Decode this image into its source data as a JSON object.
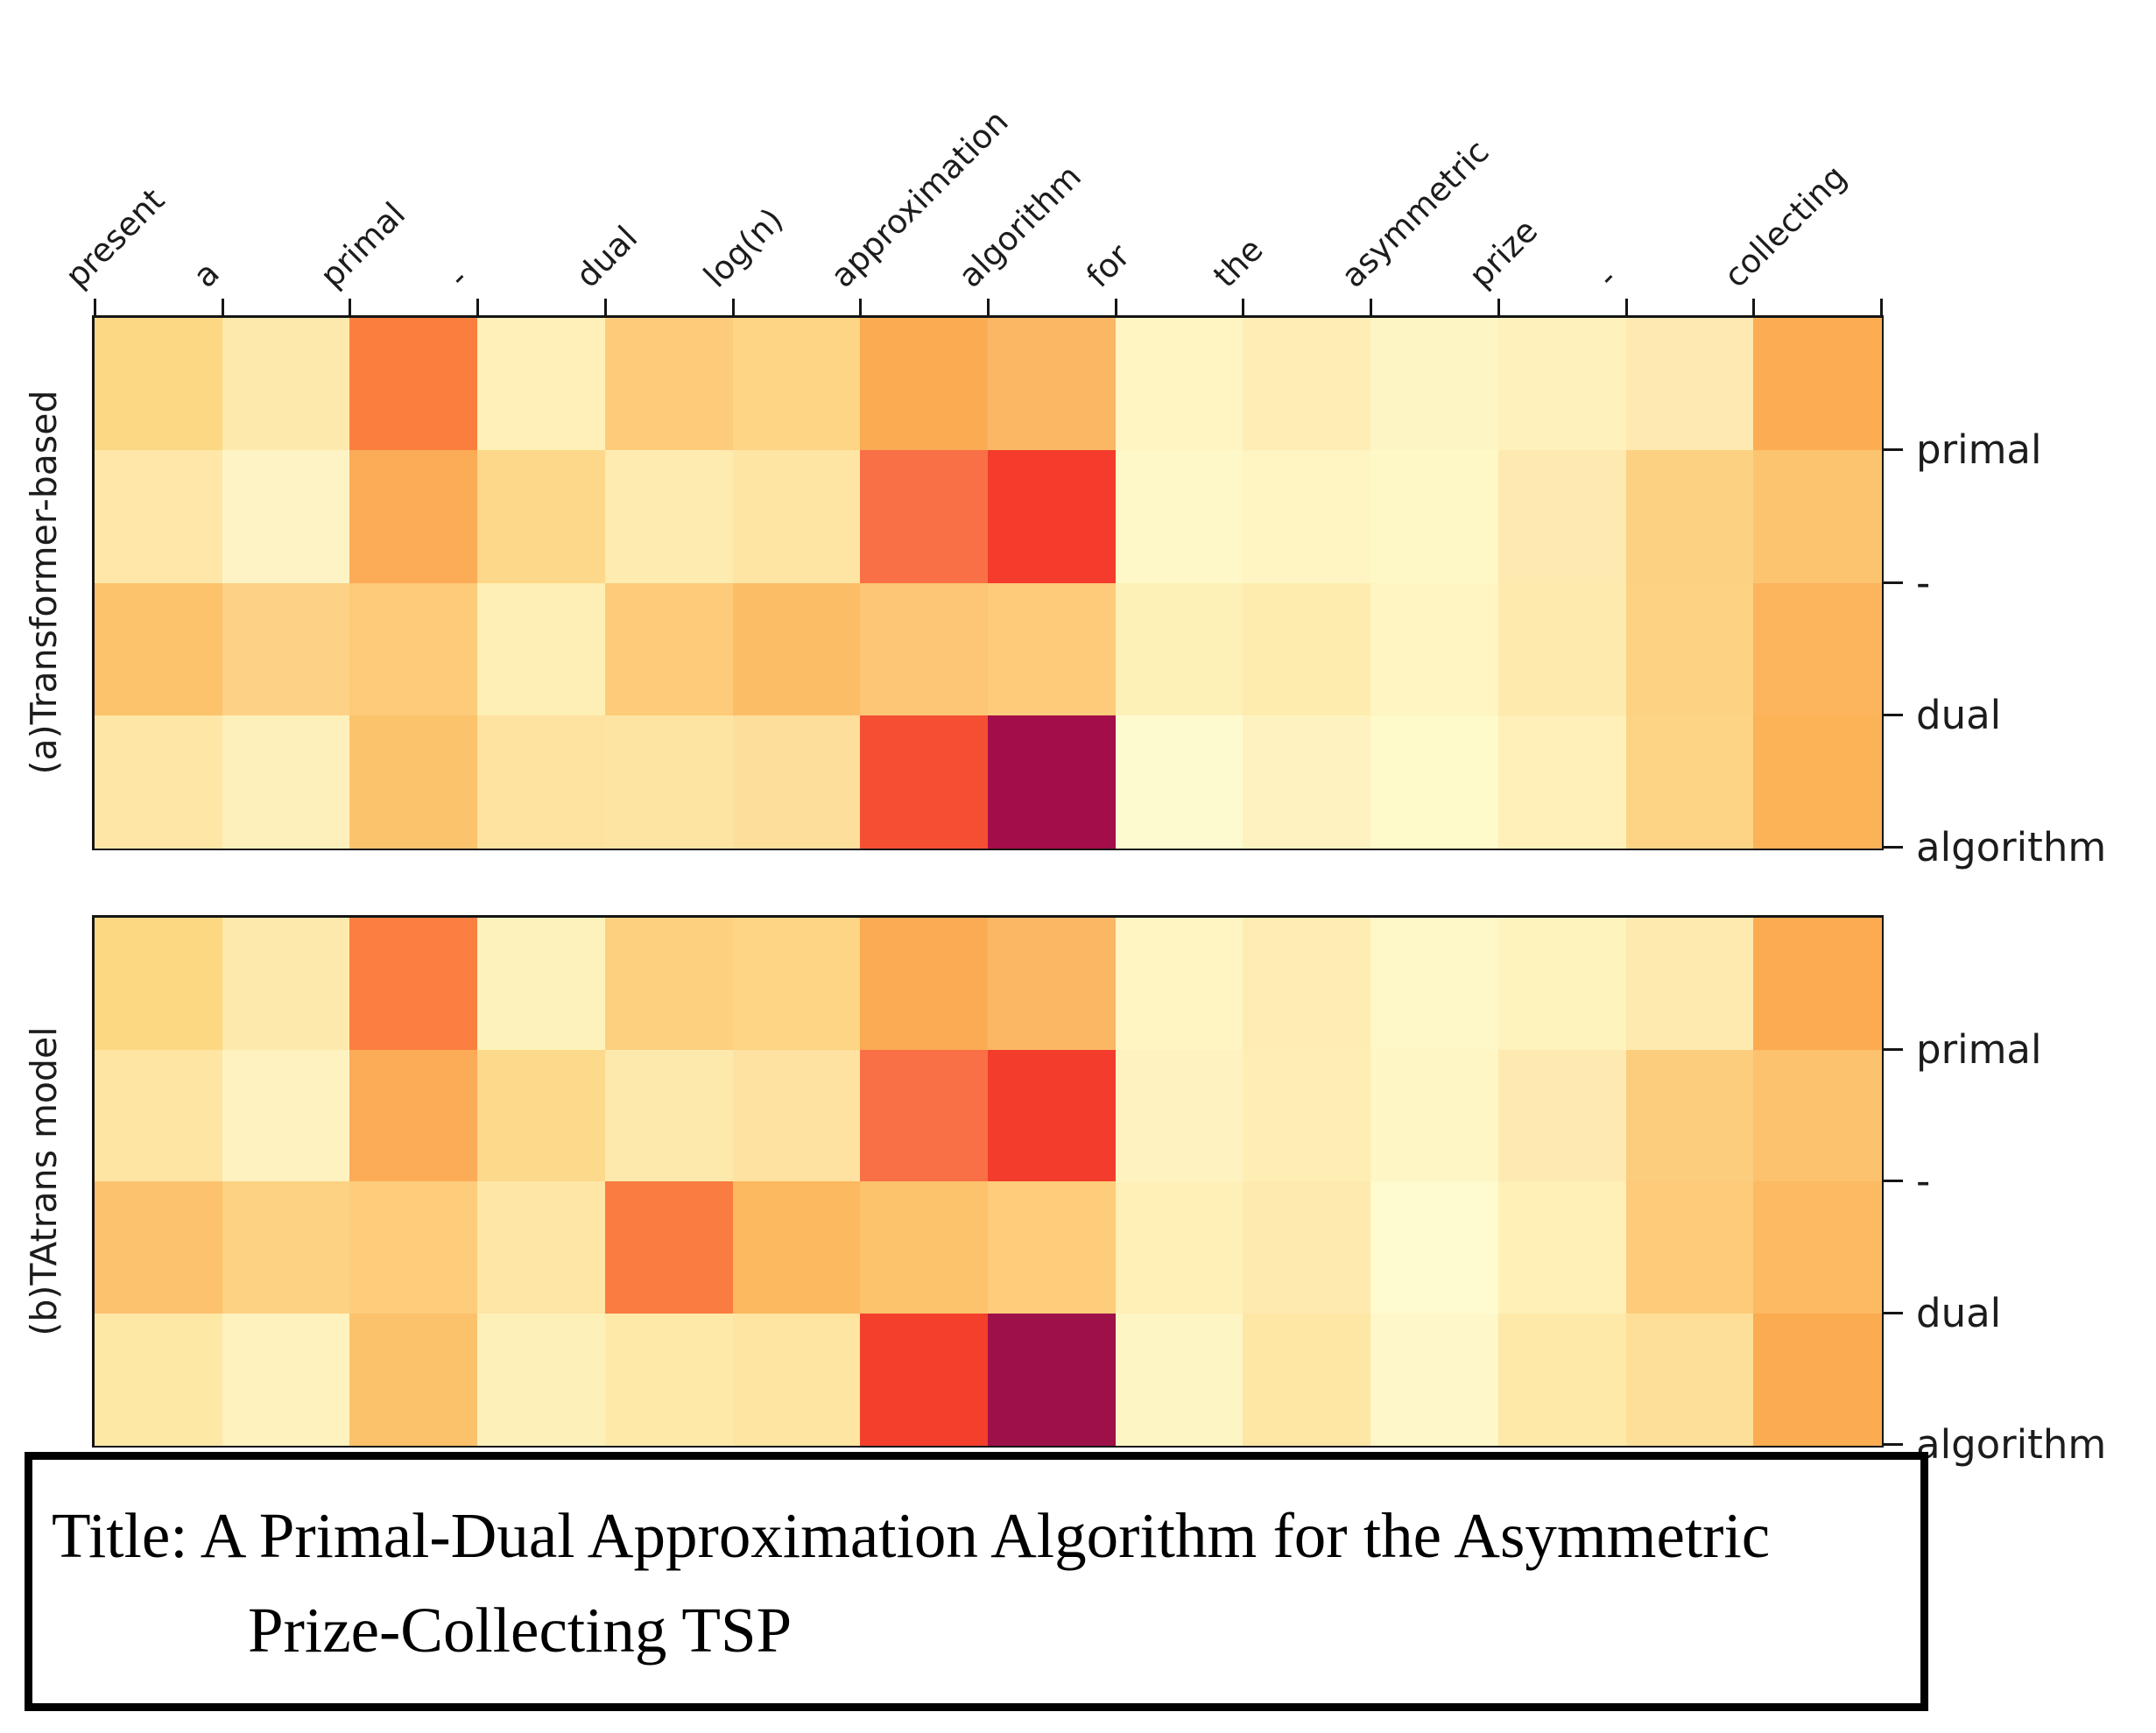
{
  "title_box": {
    "line1": "Title: A Primal-Dual Approximation Algorithm for the Asymmetric",
    "line2": "Prize-Collecting TSP"
  },
  "chart_data": [
    {
      "type": "heatmap",
      "title": "(a)Transformer-based",
      "colormap": "YlOrRd",
      "legend_position": "none",
      "grid": false,
      "x_categories": [
        "present",
        "a",
        "primal",
        "-",
        "dual",
        "log(n)",
        "approximation",
        "algorithm",
        "for",
        "the",
        "asymmetric",
        "prize",
        "-",
        "collecting"
      ],
      "y_categories": [
        "primal",
        "-",
        "dual",
        "algorithm"
      ],
      "values": [
        [
          0.34,
          0.2,
          0.72,
          0.14,
          0.41,
          0.36,
          0.61,
          0.55,
          0.1,
          0.16,
          0.1,
          0.13,
          0.2,
          0.6
        ],
        [
          0.22,
          0.11,
          0.61,
          0.34,
          0.19,
          0.24,
          0.76,
          0.84,
          0.08,
          0.1,
          0.09,
          0.2,
          0.37,
          0.46
        ],
        [
          0.47,
          0.36,
          0.41,
          0.14,
          0.41,
          0.51,
          0.44,
          0.41,
          0.13,
          0.18,
          0.1,
          0.2,
          0.36,
          0.56
        ],
        [
          0.22,
          0.14,
          0.47,
          0.25,
          0.24,
          0.28,
          0.8,
          1.0,
          0.06,
          0.12,
          0.06,
          0.14,
          0.35,
          0.57
        ]
      ],
      "cell_colors": [
        [
          "#fdd884",
          "#fee9ad",
          "#fa7f3e",
          "#fef0b8",
          "#fdcc7b",
          "#fdd585",
          "#fbab52",
          "#fcb765",
          "#fef5c3",
          "#feeeb6",
          "#fef5c4",
          "#fef1bc",
          "#fee9b0",
          "#fcad52"
        ],
        [
          "#fee7a8",
          "#fef3c4",
          "#fcab57",
          "#fdd78a",
          "#feebb0",
          "#fee5a4",
          "#f97046",
          "#f43b2c",
          "#fef8c9",
          "#fef5c3",
          "#fef7c6",
          "#feeab0",
          "#fdd182",
          "#fdc470"
        ],
        [
          "#fcc26c",
          "#fdd286",
          "#fdcb79",
          "#fef0b4",
          "#fdcb79",
          "#fcbd67",
          "#fdc675",
          "#fdcb7a",
          "#fef1b8",
          "#feecaf",
          "#fef5c2",
          "#feeaad",
          "#fdd283",
          "#fcb55c"
        ],
        [
          "#fee7a6",
          "#fef0bb",
          "#fcc36d",
          "#fee2a0",
          "#fee4a2",
          "#fede9b",
          "#f54f33",
          "#a30d49",
          "#fefad0",
          "#fef3c0",
          "#fefaca",
          "#fef0b8",
          "#fdd486",
          "#fcb257"
        ]
      ]
    },
    {
      "type": "heatmap",
      "title": "(b)TAtrans model",
      "colormap": "YlOrRd",
      "legend_position": "none",
      "grid": false,
      "x_categories": [
        "present",
        "a",
        "primal",
        "-",
        "dual",
        "log(n)",
        "approximation",
        "algorithm",
        "for",
        "the",
        "asymmetric",
        "prize",
        "-",
        "collecting"
      ],
      "y_categories": [
        "primal",
        "-",
        "dual",
        "algorithm"
      ],
      "values": [
        [
          0.34,
          0.2,
          0.72,
          0.12,
          0.38,
          0.36,
          0.61,
          0.55,
          0.1,
          0.17,
          0.08,
          0.12,
          0.2,
          0.61
        ],
        [
          0.24,
          0.12,
          0.61,
          0.33,
          0.2,
          0.25,
          0.76,
          0.84,
          0.12,
          0.16,
          0.09,
          0.2,
          0.4,
          0.47
        ],
        [
          0.47,
          0.36,
          0.4,
          0.23,
          0.72,
          0.53,
          0.47,
          0.4,
          0.14,
          0.2,
          0.05,
          0.14,
          0.41,
          0.52
        ],
        [
          0.21,
          0.12,
          0.47,
          0.14,
          0.21,
          0.24,
          0.83,
          1.0,
          0.1,
          0.23,
          0.08,
          0.21,
          0.28,
          0.61
        ]
      ],
      "cell_colors": [
        [
          "#fdd883",
          "#fee9ac",
          "#fa7f40",
          "#fef2bc",
          "#fdd07f",
          "#fdd584",
          "#fbab54",
          "#fcb765",
          "#fef5c2",
          "#feedb2",
          "#fef8c8",
          "#fef2bd",
          "#feeaae",
          "#fcab51"
        ],
        [
          "#fee5a3",
          "#fef2c0",
          "#fcab57",
          "#fdd98c",
          "#fee9ac",
          "#fee2a1",
          "#f97046",
          "#f43c2c",
          "#fef3c0",
          "#feeeb4",
          "#fef6c4",
          "#feeab0",
          "#fdcd7e",
          "#fcc26d"
        ],
        [
          "#fcc26d",
          "#fdd283",
          "#fdcd7c",
          "#fee6a6",
          "#f97c41",
          "#fcb95f",
          "#fcc26c",
          "#fdcd7b",
          "#fef0b6",
          "#feeaae",
          "#fefbce",
          "#fef0b7",
          "#fdcb7a",
          "#fcba62"
        ],
        [
          "#fee8a6",
          "#fef2bf",
          "#fcc26b",
          "#fef0b9",
          "#fee9a8",
          "#fee5a1",
          "#f43f2c",
          "#9e1048",
          "#fef5c5",
          "#fee6a5",
          "#fef7c9",
          "#fee9a9",
          "#fedf98",
          "#fbab50"
        ]
      ]
    }
  ]
}
